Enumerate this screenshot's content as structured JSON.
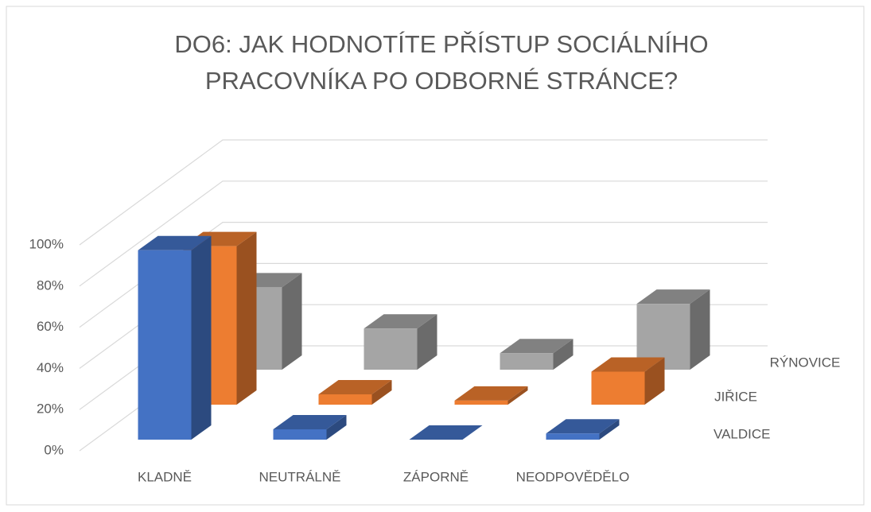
{
  "chart_data": {
    "type": "bar3d",
    "title": [
      "DO6: JAK HODNOTÍTE PŘÍSTUP SOCIÁLNÍHO",
      "PRACOVNÍKA PO ODBORNÉ STRÁNCE?"
    ],
    "categories": [
      "KLADNĚ",
      "NEUTRÁLNĚ",
      "ZÁPORNĚ",
      "NEODPOVĚDĚLO"
    ],
    "series": [
      {
        "name": "VALDICE",
        "color": "#4472c4",
        "values": [
          92,
          5,
          0,
          3
        ]
      },
      {
        "name": "JIŘICE",
        "color": "#ed7d31",
        "values": [
          77,
          5,
          2,
          16
        ]
      },
      {
        "name": "RÝNOVICE",
        "color": "#a5a5a5",
        "values": [
          40,
          20,
          8,
          32
        ]
      }
    ],
    "ylim": [
      0,
      100
    ],
    "yticks": [
      {
        "value": 0,
        "label": "0%"
      },
      {
        "value": 20,
        "label": "20%"
      },
      {
        "value": 40,
        "label": "40%"
      },
      {
        "value": 60,
        "label": "60%"
      },
      {
        "value": 80,
        "label": "80%"
      },
      {
        "value": 100,
        "label": "100%"
      }
    ],
    "grid": true
  }
}
